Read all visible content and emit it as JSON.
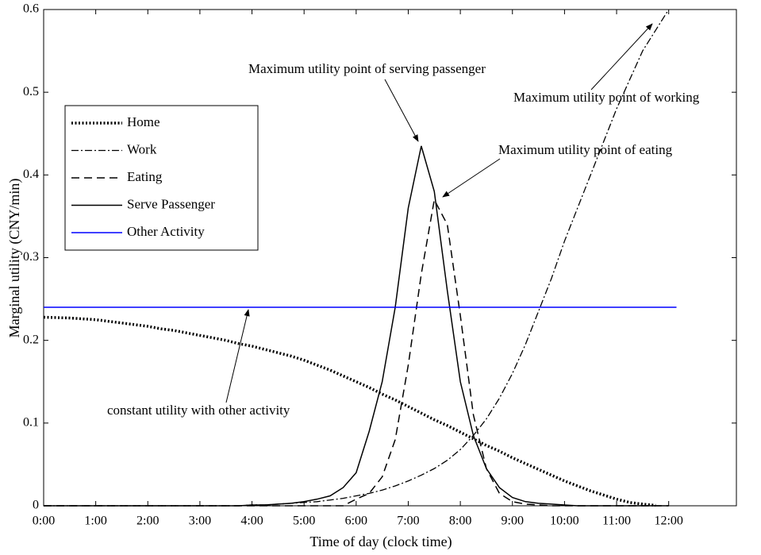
{
  "chart_data": {
    "type": "line",
    "xlabel": "Time of day (clock time)",
    "ylabel": "Marginal utility (CNY/min)",
    "xlim": [
      0,
      13.3
    ],
    "ylim": [
      0,
      0.6
    ],
    "xticks": [
      {
        "value": 0,
        "label": "0:00"
      },
      {
        "value": 1,
        "label": "1:00"
      },
      {
        "value": 2,
        "label": "2:00"
      },
      {
        "value": 3,
        "label": "3:00"
      },
      {
        "value": 4,
        "label": "4:00"
      },
      {
        "value": 5,
        "label": "5:00"
      },
      {
        "value": 6,
        "label": "6:00"
      },
      {
        "value": 7,
        "label": "7:00"
      },
      {
        "value": 8,
        "label": "8:00"
      },
      {
        "value": 9,
        "label": "9:00"
      },
      {
        "value": 10,
        "label": "10:00"
      },
      {
        "value": 11,
        "label": "11:00"
      },
      {
        "value": 12,
        "label": "12:00"
      }
    ],
    "yticks": [
      0,
      0.1,
      0.2,
      0.3,
      0.4,
      0.5,
      0.6
    ],
    "x": [
      0,
      0.25,
      0.5,
      0.75,
      1,
      1.25,
      1.5,
      1.75,
      2,
      2.25,
      2.5,
      2.75,
      3,
      3.25,
      3.5,
      3.75,
      4,
      4.25,
      4.5,
      4.75,
      5,
      5.25,
      5.5,
      5.75,
      6,
      6.25,
      6.5,
      6.75,
      7,
      7.25,
      7.5,
      7.75,
      8,
      8.25,
      8.5,
      8.75,
      9,
      9.25,
      9.5,
      9.75,
      10,
      10.25,
      10.5,
      10.75,
      11,
      11.25,
      11.5,
      11.75,
      12
    ],
    "legend": "upper left",
    "series": [
      {
        "name": "Home",
        "color": "#000000",
        "style": "dotted",
        "values": [
          0.228,
          0.2275,
          0.227,
          0.226,
          0.225,
          0.223,
          0.221,
          0.219,
          0.217,
          0.214,
          0.212,
          0.209,
          0.206,
          0.203,
          0.2,
          0.196,
          0.193,
          0.189,
          0.185,
          0.181,
          0.176,
          0.17,
          0.164,
          0.157,
          0.15,
          0.143,
          0.135,
          0.128,
          0.12,
          0.112,
          0.104,
          0.097,
          0.089,
          0.081,
          0.073,
          0.066,
          0.058,
          0.051,
          0.044,
          0.037,
          0.03,
          0.024,
          0.018,
          0.013,
          0.008,
          0.004,
          0.002,
          0.0005,
          null
        ]
      },
      {
        "name": "Work",
        "color": "#000000",
        "style": "dashdot",
        "values": [
          0,
          0,
          0,
          0,
          0,
          0,
          0,
          0,
          0,
          0,
          0,
          0,
          0,
          0,
          0,
          0,
          0.001,
          0.001,
          0.002,
          0.003,
          0.004,
          0.005,
          0.007,
          0.009,
          0.012,
          0.015,
          0.019,
          0.024,
          0.03,
          0.037,
          0.045,
          0.055,
          0.068,
          0.085,
          0.105,
          0.13,
          0.16,
          0.195,
          0.235,
          0.275,
          0.32,
          0.36,
          0.4,
          0.44,
          0.48,
          0.515,
          0.55,
          0.575,
          0.6
        ]
      },
      {
        "name": "Eating",
        "color": "#000000",
        "style": "dashed",
        "values": [
          0,
          0,
          0,
          0,
          0,
          0,
          0,
          0,
          0,
          0,
          0,
          0,
          0,
          0,
          0,
          0,
          0,
          0,
          0,
          0,
          0,
          0,
          0,
          0,
          0.008,
          0.015,
          0.035,
          0.08,
          0.17,
          0.28,
          0.37,
          0.34,
          0.23,
          0.11,
          0.045,
          0.015,
          0.005,
          0.002,
          0.001,
          0,
          0,
          0,
          0,
          0,
          0,
          0,
          0,
          0,
          0
        ]
      },
      {
        "name": "Serve Passenger",
        "color": "#000000",
        "style": "solid",
        "values": [
          0,
          0,
          0,
          0,
          0,
          0,
          0,
          0,
          0,
          0,
          0,
          0,
          0,
          0,
          0,
          0,
          0.001,
          0.001,
          0.002,
          0.003,
          0.005,
          0.008,
          0.012,
          0.022,
          0.04,
          0.09,
          0.15,
          0.24,
          0.36,
          0.435,
          0.38,
          0.26,
          0.15,
          0.085,
          0.045,
          0.022,
          0.01,
          0.005,
          0.003,
          0.002,
          0.001,
          0,
          0,
          0,
          0,
          0,
          0,
          0,
          0
        ]
      },
      {
        "name": "Other Activity",
        "color": "#0000ff",
        "style": "solid",
        "x": [
          0,
          12.15
        ],
        "values": [
          0.24,
          0.24
        ]
      }
    ],
    "annotations": [
      "Maximum utility point of serving passenger",
      "Maximum utility point of eating",
      "Maximum utility point of working",
      "constant utility with other activity"
    ]
  }
}
